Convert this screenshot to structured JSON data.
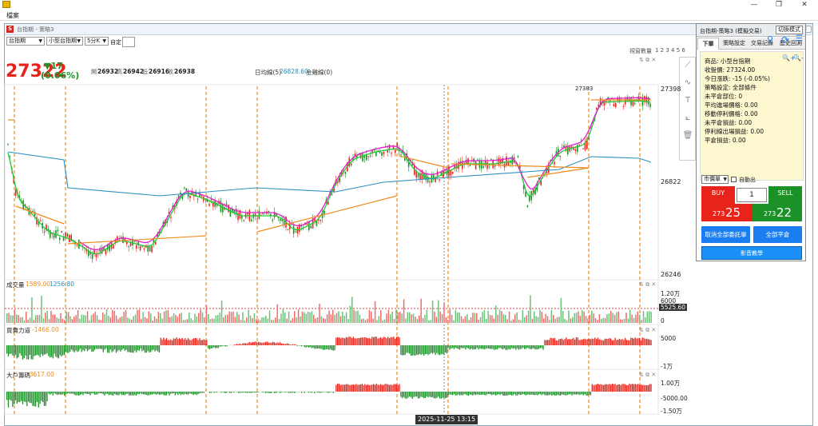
{
  "window": {
    "min": "—",
    "max": "❐",
    "close": "✕"
  },
  "menu": {
    "file": "檔案"
  },
  "inner": {
    "logo": "S",
    "title": "台指期 - 策略3"
  },
  "toolbar": {
    "product": "台指期",
    "contract": "小型台指期",
    "period": "5分K",
    "custom_label": "自定",
    "custom_value": "",
    "window_count_label": "視窗數量",
    "window_counts": "1 2 3 4 5 6"
  },
  "quote": {
    "last": "27322",
    "change": "▼17",
    "change_pct": "(0.06%)",
    "open_label": "開",
    "open": "26932",
    "high_label": "高",
    "high": "26942",
    "low_label": "低",
    "low": "26916",
    "close_label": "收",
    "close": "26938",
    "ma_label": "日均線(5)",
    "ma_value": "26828.60",
    "gold_label": "金雞線(0)",
    "peak_label": "27383"
  },
  "price_axis": {
    "top": "27398",
    "mid": "26822",
    "bottom": "26246"
  },
  "volume_panel": {
    "title": "成交量",
    "v1": "1589.00",
    "v2": "1256.80",
    "axis_top": "1.20万",
    "axis_mid": "6000",
    "axis_cursor": "5525.60",
    "axis_zero": "0"
  },
  "force_panel": {
    "title": "買賣力道",
    "value": "-1466.00",
    "axis_top": "5000",
    "axis_bottom": "-1万"
  },
  "big_panel": {
    "title": "大戶籌碼",
    "value": "-3617.00",
    "axis_top": "1.00万",
    "axis_mid": "-5000.00",
    "axis_bottom": "-1.50万"
  },
  "cursor_time": "2025-11-25  13:15",
  "order": {
    "title": "台指期-策略3 (模擬交易)",
    "switch_mode": "切換模式",
    "tabs": [
      "下單",
      "策略設定",
      "交易記錄",
      "歷史回測"
    ],
    "zoom_in": "🔍+",
    "zoom_out": "🔍-",
    "lines": [
      "商品: 小型台指期",
      "收盤價: 27324.00",
      "今日漲跌: -15 (-0.05%)",
      "策略設定: 全部條件",
      "未平倉部位: 0",
      "平均進場價格: 0.00",
      "移動停利價格: 0.00",
      "未平倉損益: 0.00",
      "停利線出場損益: 0.00",
      "平倉損益: 0.00"
    ],
    "order_type": "市價單",
    "auto_exit": "自動出",
    "buy": "BUY",
    "sell": "SELL",
    "qty": "1",
    "bid_small": "273",
    "bid_big": "25",
    "ask_small": "273",
    "ask_big": "22",
    "cancel_all": "取消全部委託單",
    "close_all": "全部平倉",
    "video": "影音教學"
  },
  "colors": {
    "up": "#e8241a",
    "down": "#1c9128",
    "accent": "#1a7ef0",
    "ma_orange": "#f08c1e",
    "ma_green": "#22c93a",
    "ma_magenta": "#e020d0",
    "ma_blue": "#2a8fc0"
  }
}
